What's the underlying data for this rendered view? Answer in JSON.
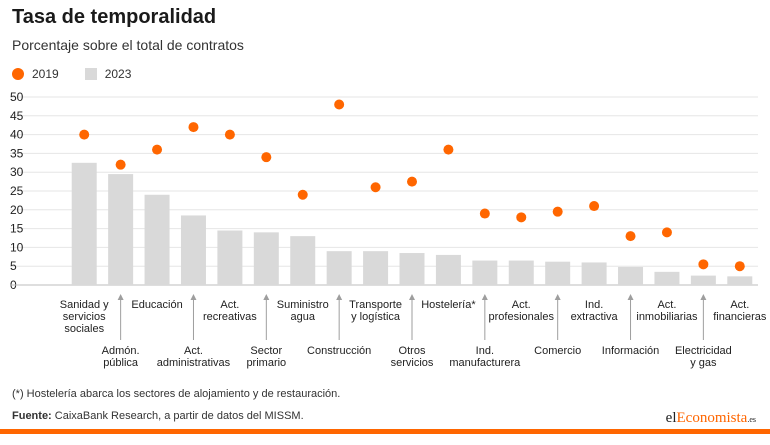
{
  "title": "Tasa de temporalidad",
  "subtitle": "Porcentaje sobre el total de contratos",
  "legend": [
    {
      "label": "2019",
      "color": "#ff6600"
    },
    {
      "label": "2023",
      "color": "#d9d9d9"
    }
  ],
  "footnote": "(*) Hostelería abarca los sectores de alojamiento y de restauración.",
  "source_label": "Fuente:",
  "source_text": "CaixaBank Research, a partir de datos del MISSM.",
  "logo": {
    "part1": "el",
    "part2": "Economista",
    "part3": ".es"
  },
  "chart_data": {
    "type": "bar",
    "ylim": [
      0,
      50
    ],
    "yticks": [
      0,
      5,
      10,
      15,
      20,
      25,
      30,
      35,
      40,
      45,
      50
    ],
    "grid": true,
    "categories": [
      "Sanidad y servicios sociales",
      "Admón. pública",
      "Educación",
      "Act. administrativas",
      "Act. recreativas",
      "Sector primario",
      "Suministro agua",
      "Construcción",
      "Transporte y logística",
      "Otros servicios",
      "Hostelería*",
      "Ind. manufacturera",
      "Act. profesionales",
      "Comercio",
      "Ind. extractiva",
      "Información",
      "Act. inmobiliarias",
      "Electricidad y gas",
      "Act. financieras"
    ],
    "category_label_lines": [
      [
        "Sanidad y",
        "servicios",
        "sociales"
      ],
      [
        "Admón.",
        "pública"
      ],
      [
        "Educación"
      ],
      [
        "Act.",
        "administrativas"
      ],
      [
        "Act.",
        "recreativas"
      ],
      [
        "Sector",
        "primario"
      ],
      [
        "Suministro",
        "agua"
      ],
      [
        "Construcción"
      ],
      [
        "Transporte",
        "y logística"
      ],
      [
        "Otros",
        "servicios"
      ],
      [
        "Hostelería*"
      ],
      [
        "Ind.",
        "manufacturera"
      ],
      [
        "Act.",
        "profesionales"
      ],
      [
        "Comercio"
      ],
      [
        "Ind.",
        "extractiva"
      ],
      [
        "Información"
      ],
      [
        "Act.",
        "inmobiliarias"
      ],
      [
        "Electricidad",
        "y gas"
      ],
      [
        "Act.",
        "financieras"
      ]
    ],
    "series": [
      {
        "name": "2019",
        "type": "scatter",
        "color": "#ff6600",
        "values": [
          40,
          32,
          36,
          42,
          40,
          34,
          24,
          48,
          26,
          27.5,
          36,
          19,
          18,
          19.5,
          21,
          13,
          14,
          5.5,
          5
        ]
      },
      {
        "name": "2023",
        "type": "bar",
        "color": "#d9d9d9",
        "values": [
          32.5,
          29.5,
          24,
          18.5,
          14.5,
          14,
          13,
          9,
          9,
          8.5,
          8,
          6.5,
          6.5,
          6.2,
          6,
          4.8,
          3.5,
          2.5,
          2.3
        ]
      }
    ]
  }
}
